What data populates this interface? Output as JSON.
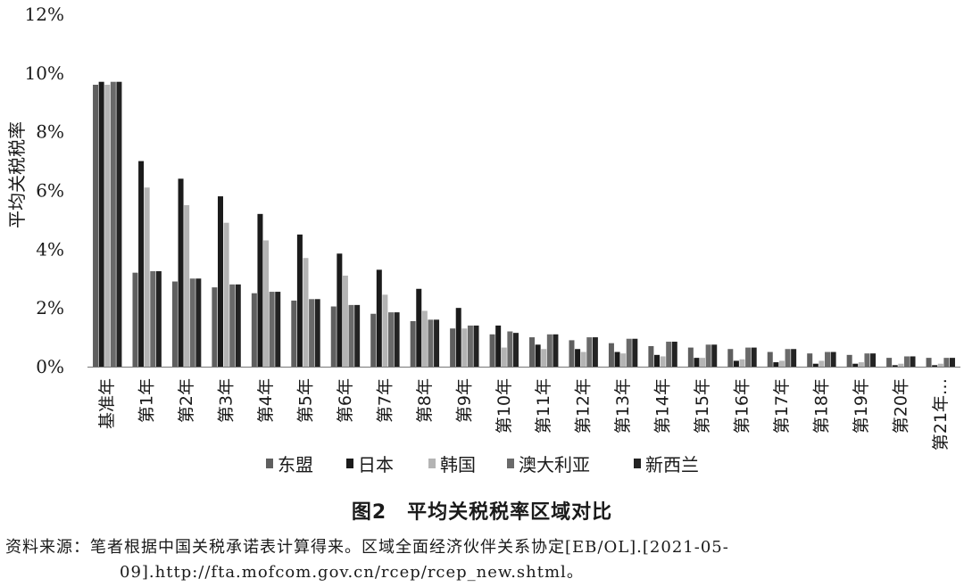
{
  "chart_data": {
    "type": "bar",
    "ylabel": "平均关税税率",
    "ylim": [
      0,
      12
    ],
    "y_ticks": [
      "0%",
      "2%",
      "4%",
      "6%",
      "8%",
      "10%",
      "12%"
    ],
    "y_tick_values": [
      0,
      2,
      4,
      6,
      8,
      10,
      12
    ],
    "grid": false,
    "legend_position": "bottom",
    "categories": [
      "基准年",
      "第1年",
      "第2年",
      "第3年",
      "第4年",
      "第5年",
      "第6年",
      "第7年",
      "第8年",
      "第9年",
      "第10年",
      "第11年",
      "第12年",
      "第13年",
      "第14年",
      "第15年",
      "第16年",
      "第17年",
      "第18年",
      "第19年",
      "第20年",
      "第21年…"
    ],
    "series": [
      {
        "name": "东盟",
        "color": "#5f5f5f",
        "values": [
          9.6,
          3.2,
          2.9,
          2.7,
          2.5,
          2.25,
          2.05,
          1.8,
          1.55,
          1.3,
          1.1,
          1.0,
          0.9,
          0.8,
          0.7,
          0.65,
          0.6,
          0.5,
          0.45,
          0.4,
          0.3,
          0.3
        ]
      },
      {
        "name": "日本",
        "color": "#1b1b1b",
        "values": [
          9.7,
          7.0,
          6.4,
          5.8,
          5.2,
          4.5,
          3.85,
          3.3,
          2.65,
          2.0,
          1.4,
          0.75,
          0.6,
          0.5,
          0.4,
          0.3,
          0.2,
          0.15,
          0.1,
          0.1,
          0.05,
          0.05
        ]
      },
      {
        "name": "韩国",
        "color": "#b4b4b4",
        "values": [
          9.6,
          6.1,
          5.5,
          4.9,
          4.3,
          3.7,
          3.1,
          2.45,
          1.9,
          1.3,
          0.65,
          0.6,
          0.5,
          0.45,
          0.35,
          0.3,
          0.25,
          0.2,
          0.2,
          0.15,
          0.1,
          0.1
        ]
      },
      {
        "name": "澳大利亚",
        "color": "#6a6a6a",
        "values": [
          9.7,
          3.25,
          3.0,
          2.8,
          2.55,
          2.3,
          2.1,
          1.85,
          1.6,
          1.4,
          1.2,
          1.1,
          1.0,
          0.95,
          0.85,
          0.75,
          0.65,
          0.6,
          0.5,
          0.45,
          0.35,
          0.3
        ]
      },
      {
        "name": "新西兰",
        "color": "#232323",
        "values": [
          9.7,
          3.25,
          3.0,
          2.8,
          2.55,
          2.3,
          2.1,
          1.85,
          1.6,
          1.4,
          1.15,
          1.1,
          1.0,
          0.95,
          0.85,
          0.75,
          0.65,
          0.6,
          0.5,
          0.45,
          0.35,
          0.3
        ]
      }
    ]
  },
  "caption": "图2　平均关税税率区域对比",
  "source_line1": "资料来源：笔者根据中国关税承诺表计算得来。区域全面经济伙伴关系协定[EB/OL].[2021-05-",
  "source_line2": "09].http://fta.mofcom.gov.cn/rcep/rcep_new.shtml。"
}
